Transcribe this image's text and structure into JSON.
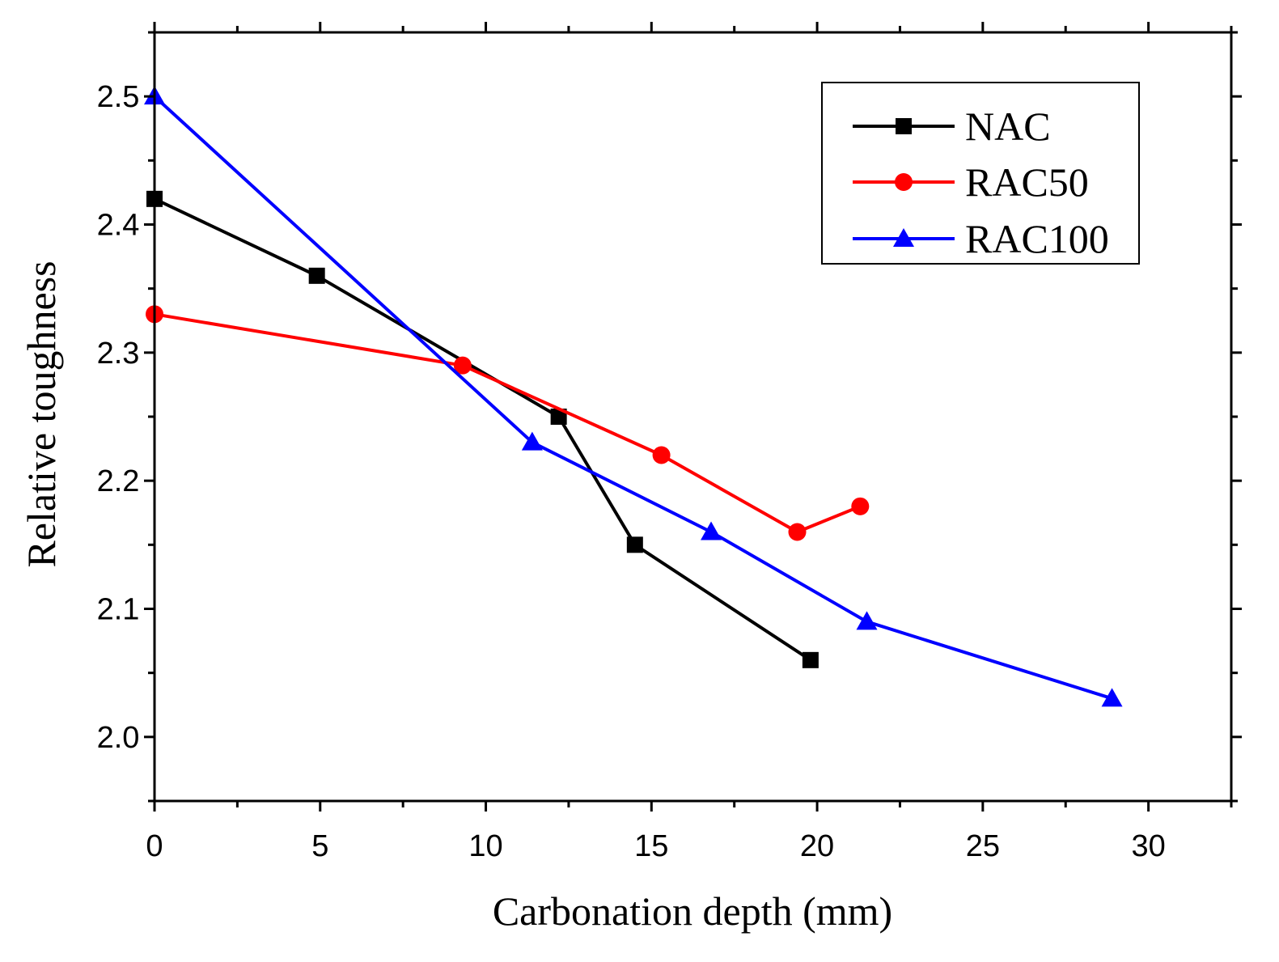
{
  "chart_data": {
    "type": "line",
    "title": "",
    "xlabel": "Carbonation depth (mm)",
    "ylabel": "Relative toughness",
    "xlim": [
      0,
      32.5
    ],
    "ylim": [
      1.95,
      2.55
    ],
    "xticks": [
      0,
      5,
      10,
      15,
      20,
      25,
      30
    ],
    "xtick_labels": [
      "0",
      "5",
      "10",
      "15",
      "20",
      "25",
      "30"
    ],
    "yticks": [
      2.0,
      2.1,
      2.2,
      2.3,
      2.4,
      2.5
    ],
    "ytick_labels": [
      "2.0",
      "2.1",
      "2.2",
      "2.3",
      "2.4",
      "2.5"
    ],
    "grid": false,
    "legend_position": "top-right",
    "series": [
      {
        "name": "NAC",
        "color": "#000000",
        "marker": "square",
        "x": [
          0,
          4.9,
          12.2,
          14.5,
          19.8
        ],
        "y": [
          2.42,
          2.36,
          2.25,
          2.15,
          2.06
        ]
      },
      {
        "name": "RAC50",
        "color": "#ff0000",
        "marker": "circle",
        "x": [
          0,
          9.3,
          15.3,
          19.4,
          21.3
        ],
        "y": [
          2.33,
          2.29,
          2.22,
          2.16,
          2.18
        ]
      },
      {
        "name": "RAC100",
        "color": "#0000ff",
        "marker": "triangle",
        "x": [
          0,
          11.4,
          16.8,
          21.5,
          28.9
        ],
        "y": [
          2.5,
          2.23,
          2.16,
          2.09,
          2.03
        ]
      }
    ]
  }
}
